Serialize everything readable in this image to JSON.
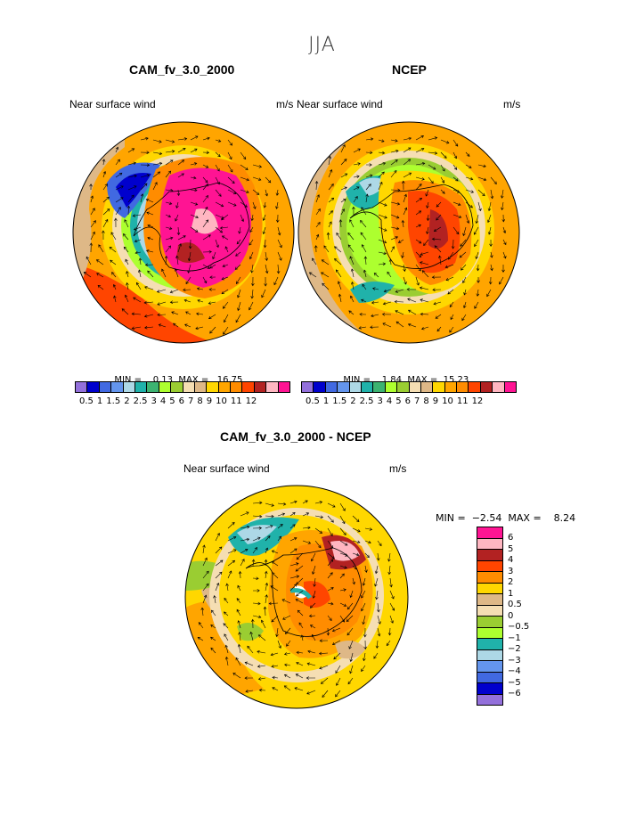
{
  "season": "JJA",
  "panels": [
    {
      "title": "CAM_fv_3.0_2000",
      "left_label": "Near surface wind",
      "units": "m/s",
      "min_label": "MIN =",
      "min": "0.13",
      "max_label": "MAX =",
      "max": "16.75"
    },
    {
      "title": "NCEP",
      "left_label": "Near surface wind",
      "units": "m/s",
      "min_label": "MIN =",
      "min": "1.84",
      "max_label": "MAX =",
      "max": "15.23"
    },
    {
      "title": "CAM_fv_3.0_2000 - NCEP",
      "left_label": "Near surface wind",
      "units": "m/s",
      "min_label": "MIN =",
      "min": "−2.54",
      "max_label": "MAX =",
      "max": "8.24"
    }
  ],
  "abs_colorbar": {
    "colors": [
      "#9370db",
      "#0000cd",
      "#4169e1",
      "#6495ed",
      "#add8e6",
      "#20b2aa",
      "#3cb371",
      "#adff2f",
      "#9acd32",
      "#f5deb3",
      "#deb887",
      "#ffd700",
      "#ffa500",
      "#ff8c00",
      "#ff4500",
      "#b22222",
      "#ffb6c1",
      "#ff1493"
    ],
    "ticks": [
      "0.5",
      "1",
      "1.5",
      "2",
      "2.5",
      "3",
      "4",
      "5",
      "6",
      "7",
      "8",
      "9",
      "10",
      "11",
      "12"
    ]
  },
  "diff_colorbar": {
    "colors": [
      "#ff1493",
      "#ffb6c1",
      "#b22222",
      "#ff4500",
      "#ff8c00",
      "#ffd700",
      "#deb887",
      "#f5deb3",
      "#9acd32",
      "#adff2f",
      "#20b2aa",
      "#add8e6",
      "#6495ed",
      "#4169e1",
      "#0000cd",
      "#9370db"
    ],
    "ticks": [
      "6",
      "5",
      "4",
      "3",
      "2",
      "1",
      "0.5",
      "0",
      "−0.5",
      "−1",
      "−2",
      "−3",
      "−4",
      "−5",
      "−6"
    ]
  },
  "icons": [
    "polar-stereographic-map",
    "wind-vector-arrows",
    "antarctica-coastline"
  ]
}
